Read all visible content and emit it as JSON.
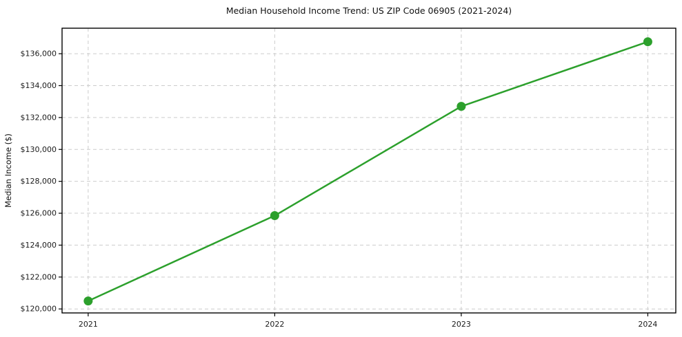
{
  "figure": {
    "title": "Median Household Income Trend: US ZIP Code 06905 (2021-2024)"
  },
  "chart_data": {
    "type": "line",
    "title": "Median Household Income Trend: US ZIP Code 06905 (2021-2024)",
    "xlabel": "",
    "ylabel": "Median Income ($)",
    "x": [
      2021,
      2022,
      2023,
      2024
    ],
    "values": [
      120500,
      125850,
      132700,
      136750
    ],
    "x_tick_labels": [
      "2021",
      "2022",
      "2023",
      "2024"
    ],
    "y_ticks": [
      120000,
      122000,
      124000,
      126000,
      128000,
      130000,
      132000,
      134000,
      136000
    ],
    "y_tick_labels": [
      "$120,000",
      "$122,000",
      "$124,000",
      "$126,000",
      "$128,000",
      "$130,000",
      "$132,000",
      "$134,000",
      "$136,000"
    ],
    "xlim": [
      2020.86,
      2024.15
    ],
    "ylim": [
      119750,
      137600
    ],
    "grid": true,
    "grid_style": "dashed",
    "legend": "none",
    "marker": "circle",
    "colors": {
      "line": "#2ca02c",
      "marker": "#2ca02c",
      "grid": "#cccccc",
      "axis": "#000000",
      "background": "#ffffff",
      "text": "#111111"
    }
  }
}
